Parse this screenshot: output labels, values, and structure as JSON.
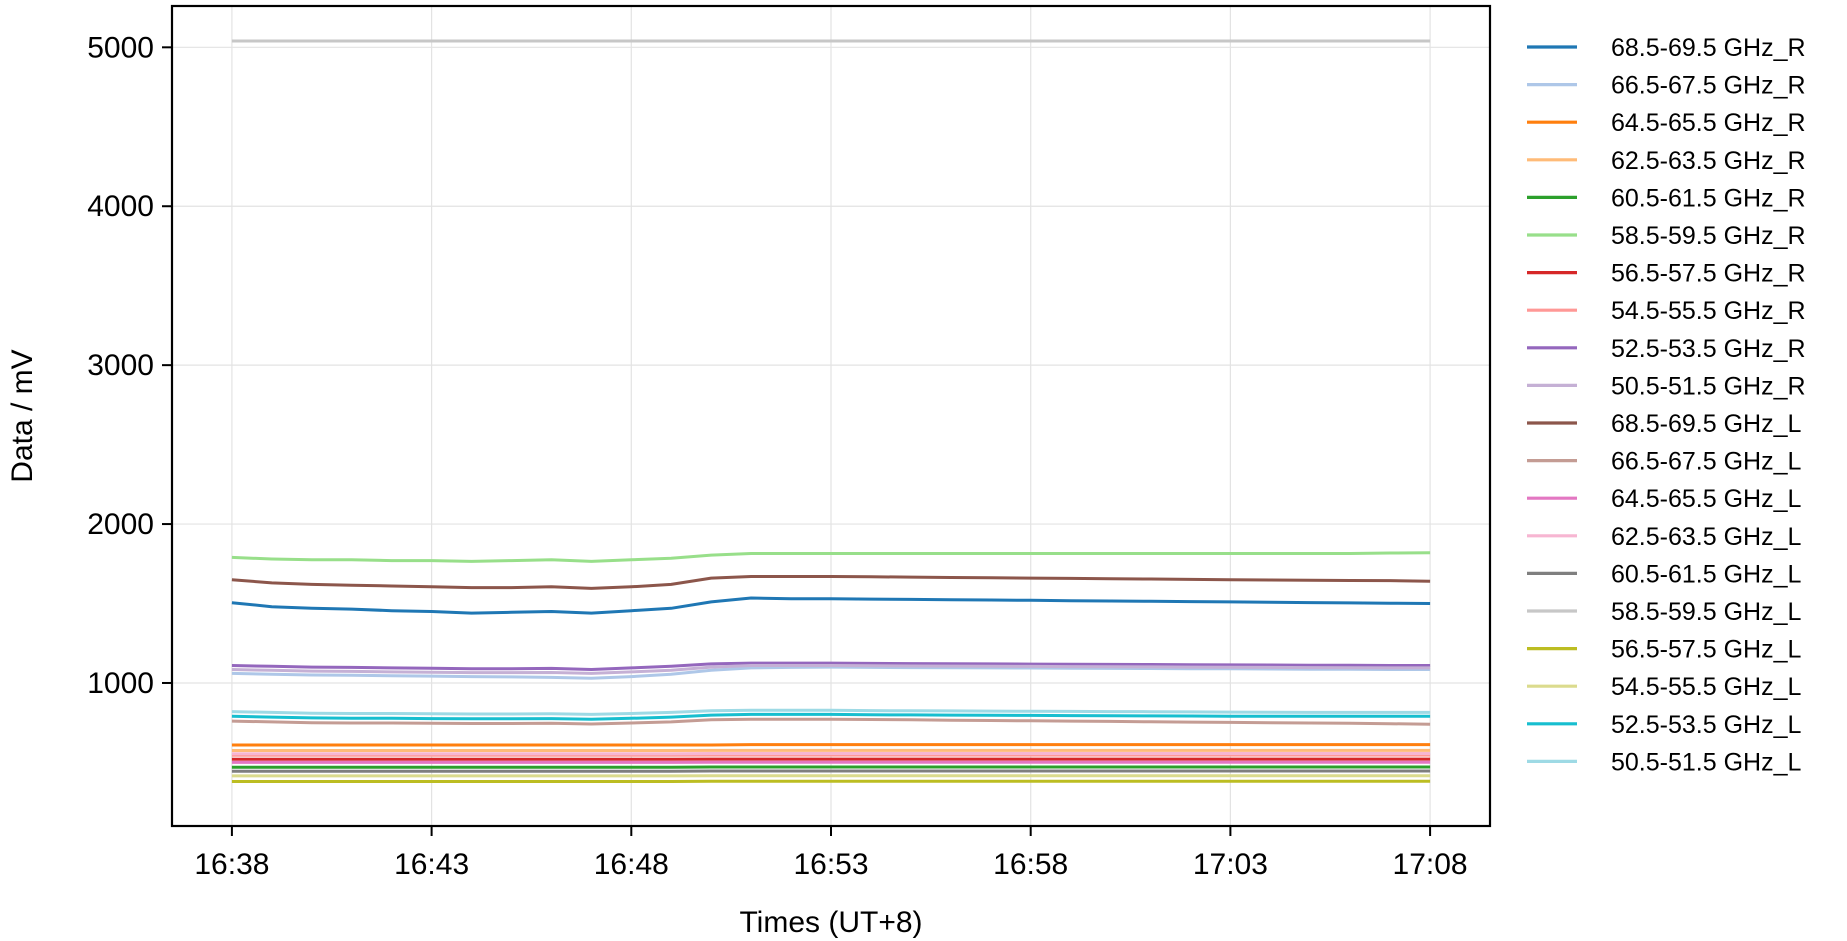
{
  "chart_data": {
    "type": "line",
    "xlabel": "Times (UT+8)",
    "ylabel": "Data / mV",
    "x_ticks": [
      "16:38",
      "16:43",
      "16:48",
      "16:53",
      "16:58",
      "17:03",
      "17:08"
    ],
    "x_tick_minutes": [
      0,
      5,
      10,
      15,
      20,
      25,
      30
    ],
    "x_unit": "minutes after 16:38",
    "xlim": [
      -1.5,
      31.5
    ],
    "ylim": [
      100,
      5260
    ],
    "y_ticks": [
      1000,
      2000,
      3000,
      4000,
      5000
    ],
    "grid": true,
    "legend_placement": "outside-right",
    "x": [
      0,
      1,
      2,
      3,
      4,
      5,
      6,
      7,
      8,
      9,
      10,
      11,
      12,
      13,
      14,
      15,
      16,
      17,
      18,
      19,
      20,
      21,
      22,
      23,
      24,
      25,
      26,
      27,
      28,
      29,
      30
    ],
    "series": [
      {
        "name": "68.5-69.5 GHz_R",
        "color": "#1f77b4",
        "values": [
          1505,
          1480,
          1470,
          1465,
          1455,
          1450,
          1440,
          1445,
          1450,
          1440,
          1455,
          1470,
          1510,
          1535,
          1530,
          1530,
          1528,
          1526,
          1524,
          1522,
          1520,
          1518,
          1516,
          1514,
          1512,
          1510,
          1508,
          1506,
          1504,
          1502,
          1500
        ]
      },
      {
        "name": "66.5-67.5 GHz_R",
        "color": "#aec7e8",
        "values": [
          1060,
          1055,
          1050,
          1048,
          1045,
          1043,
          1040,
          1038,
          1035,
          1030,
          1040,
          1055,
          1080,
          1095,
          1098,
          1100,
          1098,
          1097,
          1096,
          1095,
          1094,
          1093,
          1092,
          1091,
          1090,
          1089,
          1088,
          1087,
          1086,
          1085,
          1085
        ]
      },
      {
        "name": "64.5-65.5 GHz_R",
        "color": "#ff7f0e",
        "values": [
          610,
          610,
          610,
          610,
          610,
          610,
          610,
          610,
          610,
          610,
          610,
          610,
          610,
          612,
          612,
          612,
          612,
          612,
          612,
          612,
          612,
          612,
          612,
          612,
          612,
          612,
          612,
          612,
          612,
          612,
          612
        ]
      },
      {
        "name": "62.5-63.5 GHz_R",
        "color": "#ffbb78",
        "values": [
          575,
          575,
          575,
          575,
          575,
          575,
          575,
          575,
          575,
          575,
          575,
          575,
          576,
          576,
          576,
          576,
          576,
          576,
          576,
          576,
          576,
          576,
          576,
          576,
          576,
          576,
          576,
          576,
          576,
          576,
          576
        ]
      },
      {
        "name": "60.5-61.5 GHz_R",
        "color": "#2ca02c",
        "values": [
          470,
          470,
          470,
          470,
          470,
          470,
          470,
          470,
          470,
          470,
          470,
          470,
          471,
          471,
          471,
          471,
          471,
          471,
          471,
          471,
          471,
          471,
          471,
          471,
          471,
          471,
          471,
          471,
          471,
          471,
          471
        ]
      },
      {
        "name": "58.5-59.5 GHz_R",
        "color": "#98df8a",
        "values": [
          1790,
          1780,
          1775,
          1775,
          1770,
          1770,
          1765,
          1770,
          1775,
          1765,
          1775,
          1785,
          1805,
          1815,
          1815,
          1815,
          1815,
          1815,
          1815,
          1815,
          1815,
          1815,
          1815,
          1815,
          1815,
          1815,
          1815,
          1815,
          1815,
          1818,
          1820
        ]
      },
      {
        "name": "56.5-57.5 GHz_R",
        "color": "#d62728",
        "values": [
          520,
          520,
          520,
          520,
          520,
          520,
          520,
          520,
          520,
          520,
          520,
          520,
          521,
          521,
          521,
          521,
          521,
          521,
          521,
          521,
          521,
          521,
          521,
          521,
          521,
          521,
          521,
          521,
          521,
          521,
          521
        ]
      },
      {
        "name": "54.5-55.5 GHz_R",
        "color": "#ff9896",
        "values": [
          545,
          545,
          545,
          545,
          545,
          545,
          545,
          545,
          545,
          545,
          545,
          545,
          546,
          546,
          546,
          546,
          546,
          546,
          546,
          546,
          546,
          546,
          546,
          546,
          546,
          546,
          546,
          546,
          546,
          546,
          546
        ]
      },
      {
        "name": "52.5-53.5 GHz_R",
        "color": "#9467bd",
        "values": [
          1110,
          1105,
          1100,
          1098,
          1095,
          1093,
          1090,
          1090,
          1092,
          1085,
          1095,
          1105,
          1120,
          1125,
          1125,
          1125,
          1123,
          1122,
          1121,
          1120,
          1119,
          1118,
          1117,
          1116,
          1115,
          1114,
          1113,
          1112,
          1111,
          1110,
          1110
        ]
      },
      {
        "name": "50.5-51.5 GHz_R",
        "color": "#c5b0d5",
        "values": [
          1085,
          1080,
          1075,
          1073,
          1070,
          1068,
          1065,
          1065,
          1066,
          1060,
          1070,
          1080,
          1100,
          1110,
          1110,
          1110,
          1108,
          1107,
          1106,
          1105,
          1104,
          1103,
          1102,
          1101,
          1100,
          1099,
          1098,
          1097,
          1096,
          1095,
          1095
        ]
      },
      {
        "name": "68.5-69.5 GHz_L",
        "color": "#8c564b",
        "values": [
          1650,
          1630,
          1620,
          1615,
          1610,
          1605,
          1600,
          1600,
          1605,
          1595,
          1605,
          1620,
          1660,
          1670,
          1670,
          1670,
          1668,
          1666,
          1664,
          1662,
          1660,
          1658,
          1656,
          1654,
          1652,
          1650,
          1648,
          1646,
          1645,
          1644,
          1640
        ]
      },
      {
        "name": "66.5-67.5 GHz_L",
        "color": "#c49c94",
        "values": [
          760,
          755,
          750,
          748,
          748,
          746,
          745,
          745,
          746,
          742,
          748,
          755,
          768,
          772,
          772,
          772,
          770,
          768,
          766,
          764,
          762,
          760,
          758,
          756,
          754,
          752,
          750,
          748,
          746,
          744,
          740
        ]
      },
      {
        "name": "64.5-65.5 GHz_L",
        "color": "#e377c2",
        "values": [
          500,
          500,
          500,
          500,
          500,
          500,
          500,
          500,
          500,
          500,
          500,
          500,
          501,
          501,
          501,
          501,
          501,
          501,
          501,
          501,
          501,
          501,
          501,
          501,
          501,
          501,
          501,
          501,
          501,
          501,
          501
        ]
      },
      {
        "name": "62.5-63.5 GHz_L",
        "color": "#f7b6d2",
        "values": [
          555,
          555,
          555,
          555,
          555,
          555,
          555,
          555,
          555,
          555,
          555,
          555,
          556,
          556,
          556,
          556,
          556,
          556,
          556,
          556,
          556,
          556,
          556,
          556,
          556,
          556,
          556,
          556,
          556,
          556,
          556
        ]
      },
      {
        "name": "60.5-61.5 GHz_L",
        "color": "#7f7f7f",
        "values": [
          445,
          445,
          445,
          445,
          445,
          445,
          445,
          445,
          445,
          445,
          445,
          445,
          446,
          446,
          446,
          446,
          446,
          446,
          446,
          446,
          446,
          446,
          446,
          446,
          446,
          446,
          446,
          446,
          446,
          446,
          446
        ]
      },
      {
        "name": "58.5-59.5 GHz_L",
        "color": "#c7c7c7",
        "values": [
          5040,
          5040,
          5040,
          5040,
          5040,
          5040,
          5040,
          5040,
          5040,
          5040,
          5040,
          5040,
          5040,
          5040,
          5040,
          5040,
          5040,
          5040,
          5040,
          5040,
          5040,
          5040,
          5040,
          5040,
          5040,
          5040,
          5040,
          5040,
          5040,
          5040,
          5040
        ]
      },
      {
        "name": "56.5-57.5 GHz_L",
        "color": "#bcbd22",
        "values": [
          380,
          380,
          380,
          380,
          380,
          380,
          380,
          380,
          380,
          380,
          380,
          380,
          381,
          381,
          381,
          381,
          381,
          381,
          381,
          381,
          381,
          381,
          381,
          381,
          381,
          381,
          381,
          381,
          381,
          381,
          381
        ]
      },
      {
        "name": "54.5-55.5 GHz_L",
        "color": "#dbdb8d",
        "values": [
          415,
          415,
          415,
          415,
          415,
          415,
          415,
          415,
          415,
          415,
          415,
          415,
          416,
          416,
          416,
          416,
          416,
          416,
          416,
          416,
          416,
          416,
          416,
          416,
          416,
          416,
          416,
          416,
          416,
          416,
          416
        ]
      },
      {
        "name": "52.5-53.5 GHz_L",
        "color": "#17becf",
        "values": [
          790,
          785,
          780,
          778,
          778,
          776,
          775,
          775,
          776,
          772,
          778,
          785,
          798,
          802,
          802,
          802,
          800,
          799,
          798,
          797,
          796,
          795,
          794,
          793,
          792,
          791,
          790,
          790,
          790,
          790,
          790
        ]
      },
      {
        "name": "50.5-51.5 GHz_L",
        "color": "#9edae5",
        "values": [
          820,
          815,
          810,
          808,
          808,
          806,
          805,
          805,
          806,
          802,
          808,
          815,
          825,
          828,
          828,
          828,
          826,
          825,
          824,
          823,
          822,
          821,
          820,
          819,
          818,
          817,
          816,
          815,
          815,
          815,
          815
        ]
      }
    ]
  }
}
